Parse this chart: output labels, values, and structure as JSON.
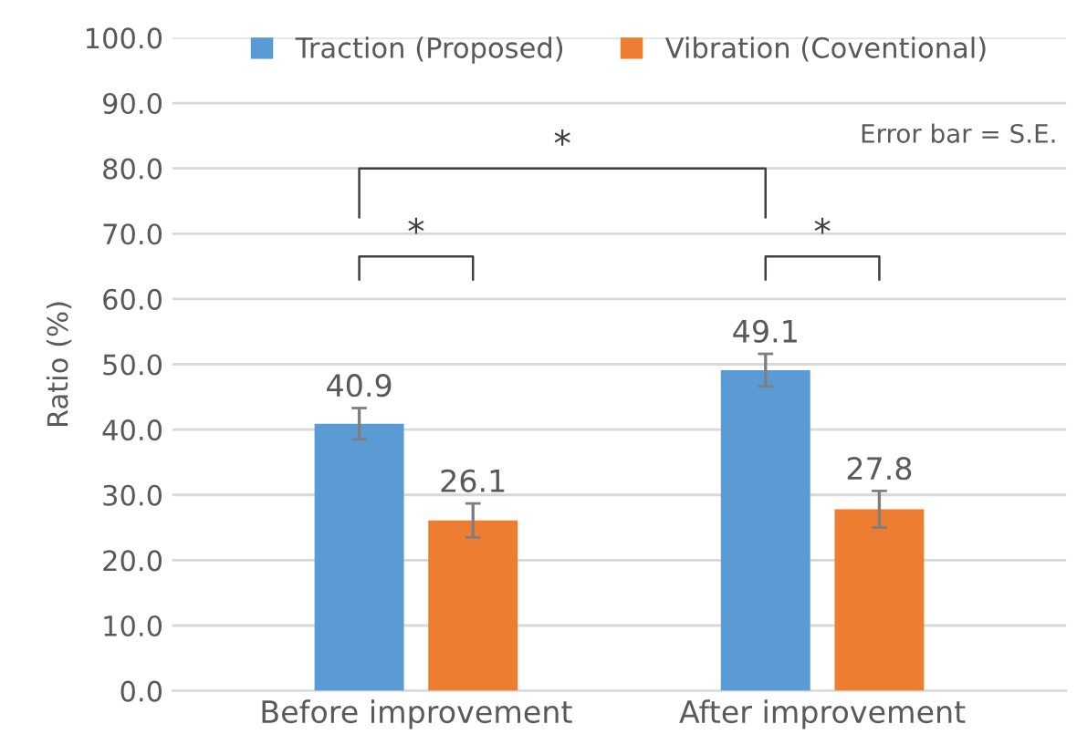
{
  "chart_data": {
    "type": "bar",
    "ylabel": "Ratio (%)",
    "categories": [
      "Before improvement",
      "After improvement"
    ],
    "series": [
      {
        "name": "Traction (Proposed)",
        "color": "#5b9bd5",
        "values": [
          40.9,
          49.1
        ],
        "errors": [
          2.4,
          2.5
        ]
      },
      {
        "name": "Vibration (Coventional)",
        "color": "#ed7d31",
        "values": [
          26.1,
          27.8
        ],
        "errors": [
          2.6,
          2.8
        ]
      }
    ],
    "ylim": [
      0,
      100
    ],
    "yticks": [
      {
        "value": 0,
        "label": "0.0"
      },
      {
        "value": 10,
        "label": "10.0"
      },
      {
        "value": 20,
        "label": "20.0"
      },
      {
        "value": 30,
        "label": "30.0"
      },
      {
        "value": 40,
        "label": "40.0"
      },
      {
        "value": 50,
        "label": "50.0"
      },
      {
        "value": 60,
        "label": "60.0"
      },
      {
        "value": 70,
        "label": "70.0"
      },
      {
        "value": 80,
        "label": "80.0"
      },
      {
        "value": 90,
        "label": "90.0"
      },
      {
        "value": 100,
        "label": "100.0"
      }
    ],
    "grid": "y",
    "legend": "top",
    "data_labels": true,
    "annotations": [
      "*",
      "*",
      "*",
      "Error bar = S.E."
    ]
  }
}
